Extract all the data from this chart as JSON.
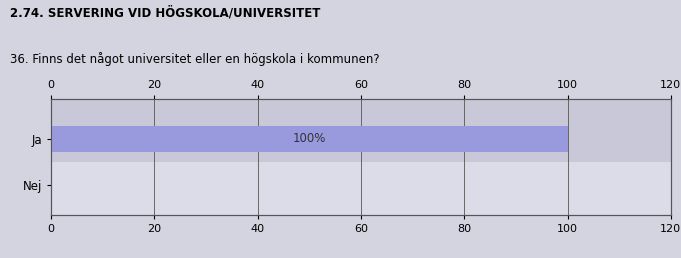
{
  "title": "2.74. SERVERING VID HÖGSKOLA/UNIVERSITET",
  "subtitle": "36. Finns det något universitet eller en högskola i kommunen?",
  "categories": [
    "Nej",
    "Ja"
  ],
  "bar_index": 1,
  "bar_value": 100,
  "bar_color": "#9999dd",
  "bar_label": "100%",
  "xlim": [
    0,
    120
  ],
  "xticks": [
    0,
    20,
    40,
    60,
    80,
    100,
    120
  ],
  "bg_color": "#d4d4e0",
  "plot_bg_top": "#c8c8d8",
  "plot_bg_bot": "#dcdce8",
  "grid_color": "#555555",
  "title_fontsize": 8.5,
  "subtitle_fontsize": 8.5,
  "tick_fontsize": 8,
  "label_fontsize": 8.5
}
